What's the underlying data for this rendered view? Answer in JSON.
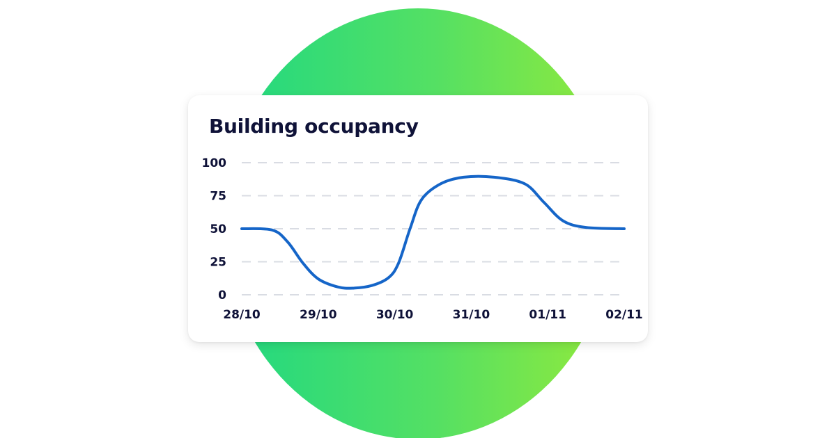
{
  "chart_data": {
    "type": "line",
    "title": "Building occupancy",
    "x": [
      "28/10",
      "29/10",
      "30/10",
      "31/10",
      "01/11",
      "02/11"
    ],
    "series": [
      {
        "values": [
          50,
          15,
          13,
          88,
          68,
          50
        ],
        "color": "#1565c8"
      }
    ],
    "curve_points": [
      [
        0.0,
        50
      ],
      [
        0.4,
        49
      ],
      [
        0.6,
        40
      ],
      [
        0.8,
        24
      ],
      [
        1.0,
        12
      ],
      [
        1.25,
        6
      ],
      [
        1.45,
        5
      ],
      [
        1.7,
        7
      ],
      [
        1.92,
        13
      ],
      [
        2.05,
        24
      ],
      [
        2.2,
        50
      ],
      [
        2.35,
        72
      ],
      [
        2.6,
        84
      ],
      [
        2.9,
        89
      ],
      [
        3.3,
        89
      ],
      [
        3.7,
        84
      ],
      [
        3.95,
        70
      ],
      [
        4.2,
        56
      ],
      [
        4.5,
        51
      ],
      [
        5.0,
        50
      ]
    ],
    "y_ticks": [
      "0",
      "25",
      "50",
      "75",
      "100"
    ],
    "ylim": [
      0,
      100
    ],
    "xlabel": "",
    "ylabel": "",
    "grid": true,
    "grid_style": "dashed",
    "grid_color": "#d9dce3",
    "legend": "none"
  },
  "theme": {
    "text_color": "#0f1238",
    "line_color": "#1565c8",
    "blob_gradient_start": "#1fd882",
    "blob_gradient_end": "#93ea3b"
  }
}
